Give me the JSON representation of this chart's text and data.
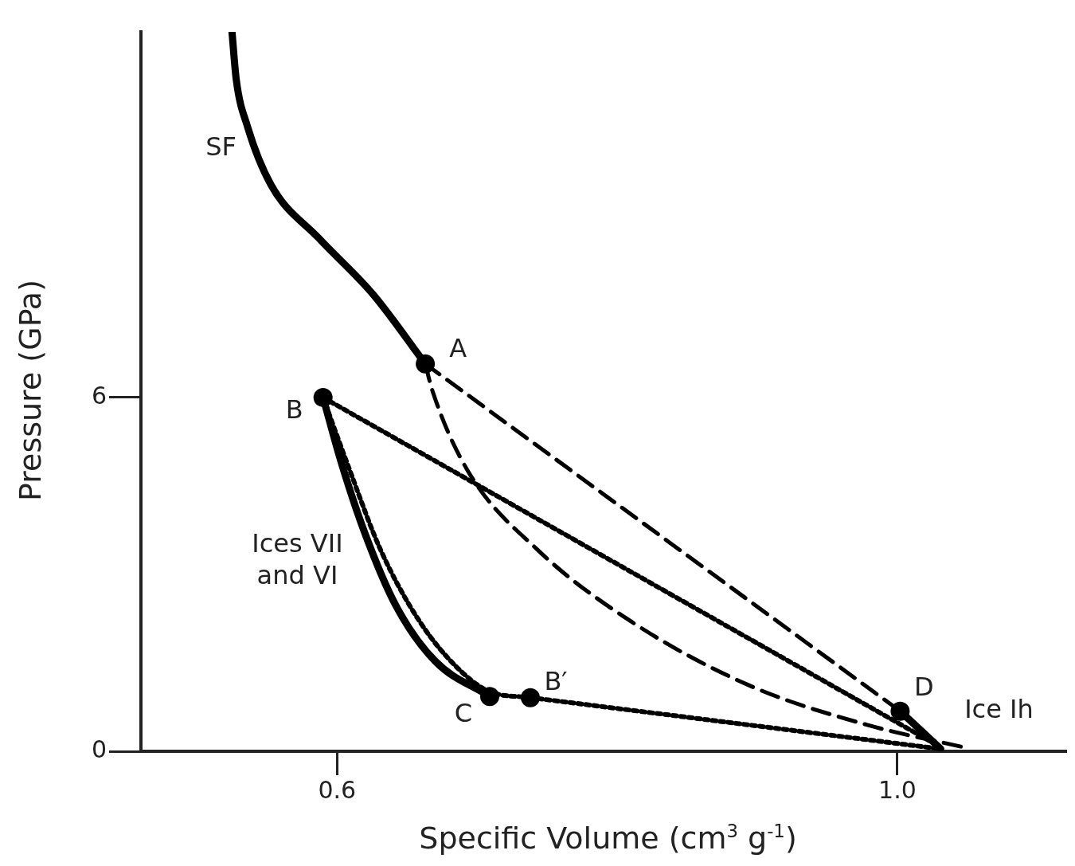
{
  "chart_data": {
    "type": "line",
    "xlabel": "Specific Volume (cm$^{3}$ g$^{-1}$)",
    "ylabel": "Pressure (GPa)",
    "xlim": [
      0.46,
      1.12
    ],
    "ylim": [
      0,
      12.2
    ],
    "xticks": [
      0.6,
      {
        "value": 1.0,
        "label": "1.0"
      }
    ],
    "yticks": [
      0,
      6
    ],
    "grid": false,
    "legend": false,
    "series": [
      {
        "color": "#000000",
        "line_style": "solid",
        "marker": "none",
        "x": [
          0.525,
          0.528,
          0.536,
          0.553,
          0.587,
          0.626,
          0.663
        ],
        "values": [
          12.2,
          11.4,
          10.6,
          9.6,
          8.7,
          7.74,
          6.57
        ]
      },
      {
        "color": "#000000",
        "line_style": "solid",
        "marker": "none",
        "x": [
          0.59,
          0.603,
          0.62,
          0.642,
          0.67,
          0.709
        ],
        "values": [
          6.0,
          4.9,
          3.69,
          2.47,
          1.53,
          0.93
        ]
      },
      {
        "color": "#000000",
        "line_style": "solid",
        "marker": "none",
        "x": [
          1.002,
          1.031
        ],
        "values": [
          0.68,
          0.04
        ]
      },
      {
        "color": "#000000",
        "line_style": "dotted",
        "marker": "none",
        "x": [
          0.59,
          0.609,
          0.631,
          0.659,
          0.687,
          0.709,
          0.738
        ],
        "values": [
          6.0,
          4.77,
          3.42,
          2.2,
          1.39,
          1.01,
          0.91
        ]
      },
      {
        "color": "#000000",
        "line_style": "dotted",
        "marker": "none",
        "x": [
          0.738,
          1.031
        ],
        "values": [
          0.91,
          0.04
        ]
      },
      {
        "color": "#000000",
        "line_style": "dotted",
        "marker": "none",
        "x": [
          0.59,
          1.028
        ],
        "values": [
          6.0,
          0.11
        ]
      },
      {
        "color": "#000000",
        "line_style": "dashed",
        "marker": "none",
        "x": [
          0.663,
          1.002
        ],
        "values": [
          6.57,
          0.68
        ]
      },
      {
        "color": "#000000",
        "line_style": "dashed",
        "marker": "none",
        "x": [
          0.663,
          0.668,
          0.693,
          0.743,
          0.81,
          0.894,
          0.978,
          1.047
        ],
        "values": [
          6.57,
          6.12,
          4.77,
          3.42,
          2.2,
          1.12,
          0.45,
          0.07
        ]
      },
      {
        "type": "scatter",
        "color": "#000000",
        "marker": "circle",
        "x": [
          0.663,
          0.59,
          0.709,
          0.738,
          1.002
        ],
        "values": [
          6.57,
          6.0,
          0.93,
          0.91,
          0.68
        ]
      }
    ],
    "annotations": [
      {
        "text": "SF",
        "x": 0.553,
        "y": 9.6
      },
      {
        "text": "A",
        "x": 0.663,
        "y": 6.57
      },
      {
        "text": "B",
        "x": 0.59,
        "y": 6.0
      },
      {
        "text": "Ices VII and VI",
        "x": 0.62,
        "y": 3.69
      },
      {
        "text": "C",
        "x": 0.709,
        "y": 0.93
      },
      {
        "text": "B′",
        "x": 0.738,
        "y": 0.91
      },
      {
        "text": "D",
        "x": 1.002,
        "y": 0.68
      },
      {
        "text": "Ice Ih",
        "x": 1.031,
        "y": 0.04
      }
    ]
  }
}
